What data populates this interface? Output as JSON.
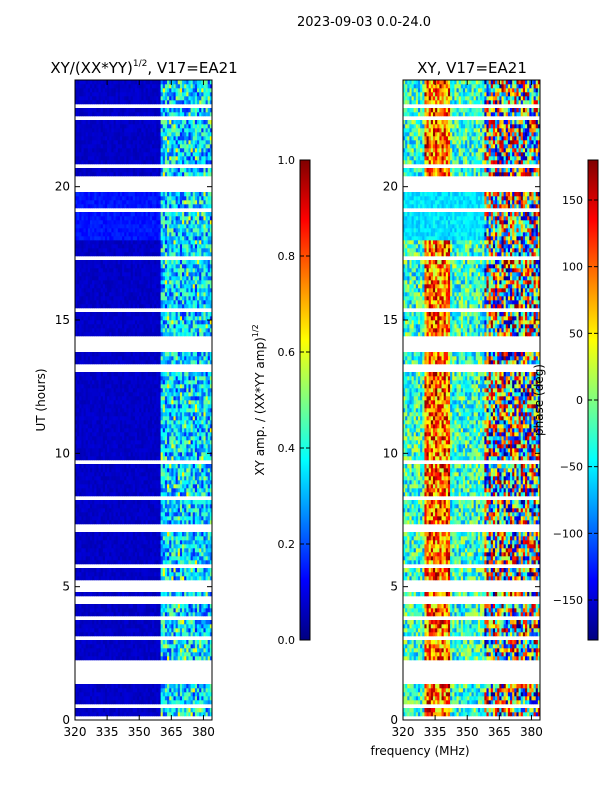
{
  "figure": {
    "suptitle": "2023-09-03 0.0-24.0",
    "xlabel": "frequency (MHz)"
  },
  "colors": {
    "jet_stops": [
      "#000080",
      "#0000ff",
      "#0080ff",
      "#00ffff",
      "#80ff80",
      "#ffff00",
      "#ff8000",
      "#ff0000",
      "#800000"
    ],
    "gap": "#ffffff"
  },
  "chart_data": [
    {
      "type": "heatmap",
      "title_prefix": "XY/(XX*YY)",
      "title_exponent": "1/2",
      "title_suffix": ", V17=EA21",
      "xlabel": "",
      "ylabel": "UT (hours)",
      "xlim": [
        320,
        384
      ],
      "ylim": [
        0,
        24
      ],
      "xticks": [
        320,
        335,
        350,
        365,
        380
      ],
      "yticks": [
        0,
        5,
        10,
        15,
        20
      ],
      "colorbar": {
        "label_prefix": "XY amp. / (XX*YY amp)",
        "label_exponent": "1/2",
        "range": [
          0.0,
          1.0
        ],
        "ticks": [
          0.0,
          0.2,
          0.4,
          0.6,
          0.8,
          1.0
        ],
        "tick_labels": [
          "0.0",
          "0.2",
          "0.4",
          "0.6",
          "0.8",
          "1.0"
        ]
      },
      "description_values": {
        "background_value": 0.05,
        "band_high_value_range_MHz": [
          360,
          384
        ],
        "band_high_values": [
          0.2,
          0.5
        ]
      }
    },
    {
      "type": "heatmap",
      "title": "XY, V17=EA21",
      "xlabel": "frequency (MHz)",
      "ylabel": "",
      "xlim": [
        320,
        384
      ],
      "ylim": [
        0,
        24
      ],
      "xticks": [
        320,
        335,
        350,
        365,
        380
      ],
      "yticks": [
        0,
        5,
        10,
        15,
        20
      ],
      "colorbar": {
        "label": "phase (deg)",
        "range": [
          -180,
          180
        ],
        "ticks": [
          -150,
          -100,
          -50,
          0,
          50,
          100,
          150
        ],
        "tick_labels": [
          "−150",
          "−100",
          "−50",
          "0",
          "50",
          "100",
          "150"
        ]
      }
    }
  ]
}
